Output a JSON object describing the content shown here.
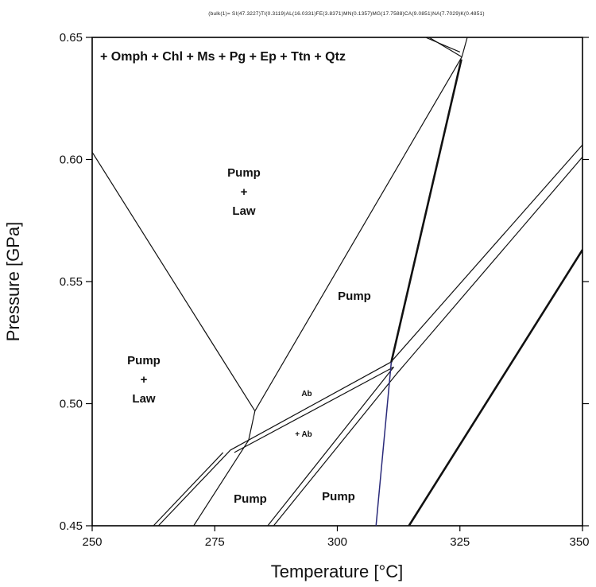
{
  "header": {
    "bulk_composition": "(bulk(1)= SI(47.3227)TI(0.3119)AL(16.0331)FE(3.8371)MN(0.1357)MG(17.7588)CA(9.0851)NA(7.7029)K(0.4851)"
  },
  "assemblage": "+ Omph + Chl + Ms + Pg + Ep + Ttn + Qtz",
  "fields": {
    "pump_law_upper_1": "Pump",
    "pump_law_upper_2": "+",
    "pump_law_upper_3": "Law",
    "pump_right": "Pump",
    "pump_law_left_1": "Pump",
    "pump_law_left_2": "+",
    "pump_law_left_3": "Law",
    "ab": "Ab",
    "plus_ab": "+ Ab",
    "pump_bottom_left": "Pump",
    "pump_bottom_mid": "Pump"
  },
  "chart_data": {
    "type": "diagram",
    "xlabel": "Temperature [°C]",
    "ylabel": "Pressure [GPa]",
    "xlim": [
      250,
      350
    ],
    "ylim": [
      0.45,
      0.65
    ],
    "xticks": [
      250,
      275,
      300,
      325,
      350
    ],
    "xtick_labels": [
      "250",
      "275",
      "300",
      "325",
      "350"
    ],
    "yticks": [
      0.45,
      0.5,
      0.55,
      0.6,
      0.65
    ],
    "ytick_labels": [
      "0.45",
      "0.50",
      "0.55",
      "0.60",
      "0.65"
    ],
    "reaction_lines": [
      {
        "id": "r1",
        "style": "thin",
        "points": [
          [
            250.0,
            0.603
          ],
          [
            283.2,
            0.497
          ]
        ]
      },
      {
        "id": "r2",
        "style": "thin",
        "points": [
          [
            283.2,
            0.497
          ],
          [
            325.4,
            0.642
          ]
        ]
      },
      {
        "id": "r3",
        "style": "thin",
        "points": [
          [
            283.2,
            0.497
          ],
          [
            281.9,
            0.485
          ]
        ]
      },
      {
        "id": "r4",
        "style": "thin",
        "points": [
          [
            281.9,
            0.485
          ],
          [
            270.7,
            0.45
          ]
        ]
      },
      {
        "id": "r5",
        "style": "thin",
        "points": [
          [
            278.2,
            0.481
          ],
          [
            310.9,
            0.517
          ]
        ]
      },
      {
        "id": "r6",
        "style": "thin",
        "points": [
          [
            279.0,
            0.48
          ],
          [
            311.5,
            0.515
          ]
        ]
      },
      {
        "id": "r7",
        "style": "thin",
        "points": [
          [
            276.7,
            0.48
          ],
          [
            262.5,
            0.45
          ]
        ]
      },
      {
        "id": "r8",
        "style": "thin",
        "points": [
          [
            278.2,
            0.481
          ],
          [
            263.5,
            0.45
          ]
        ]
      },
      {
        "id": "r9",
        "style": "thin",
        "points": [
          [
            311.5,
            0.515
          ],
          [
            285.8,
            0.45
          ]
        ]
      },
      {
        "id": "r10",
        "style": "thin",
        "points": [
          [
            312.0,
            0.512
          ],
          [
            287.0,
            0.45
          ]
        ]
      },
      {
        "id": "r11",
        "style": "thin",
        "points": [
          [
            310.9,
            0.517
          ],
          [
            350.0,
            0.606
          ]
        ]
      },
      {
        "id": "r12",
        "style": "thin",
        "points": [
          [
            312.0,
            0.512
          ],
          [
            350.0,
            0.601
          ]
        ]
      },
      {
        "id": "r13",
        "style": "thick",
        "points": [
          [
            311.0,
            0.517
          ],
          [
            325.3,
            0.641
          ]
        ]
      },
      {
        "id": "r14",
        "style": "blue",
        "points": [
          [
            311.0,
            0.517
          ],
          [
            307.9,
            0.45
          ]
        ]
      },
      {
        "id": "r15",
        "style": "thin",
        "points": [
          [
            318.0,
            0.65
          ],
          [
            325.0,
            0.644
          ]
        ]
      },
      {
        "id": "r16",
        "style": "thin",
        "points": [
          [
            318.7,
            0.65
          ],
          [
            325.4,
            0.642
          ]
        ]
      },
      {
        "id": "r17",
        "style": "thin",
        "points": [
          [
            325.4,
            0.642
          ],
          [
            326.5,
            0.65
          ]
        ]
      },
      {
        "id": "r18",
        "style": "thick",
        "points": [
          [
            314.6,
            0.45
          ],
          [
            350.0,
            0.563
          ]
        ]
      }
    ]
  }
}
